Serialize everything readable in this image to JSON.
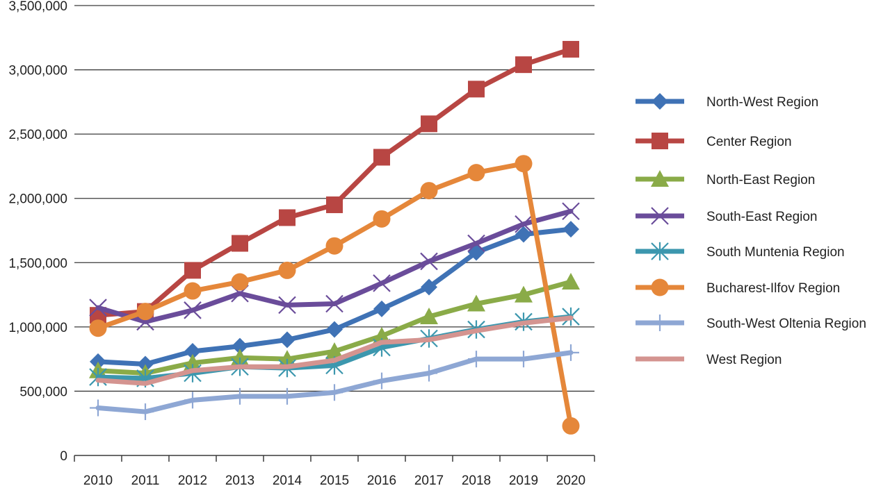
{
  "chart_data": {
    "type": "line",
    "title": "",
    "xlabel": "",
    "ylabel": "",
    "x": [
      "2010",
      "2011",
      "2012",
      "2013",
      "2014",
      "2015",
      "2016",
      "2017",
      "2018",
      "2019",
      "2020"
    ],
    "ylim": [
      0,
      3500000
    ],
    "yticks": [
      0,
      500000,
      1000000,
      1500000,
      2000000,
      2500000,
      3000000,
      3500000
    ],
    "ytick_labels": [
      "0",
      "500,000",
      "1,000,000",
      "1,500,000",
      "2,000,000",
      "2,500,000",
      "3,000,000",
      "3,500,000"
    ],
    "grid": "horizontal",
    "legend_position": "right",
    "series": [
      {
        "name": "North-West Region",
        "color": "#3f72b5",
        "marker": "diamond",
        "values": [
          730000,
          710000,
          810000,
          850000,
          900000,
          980000,
          1140000,
          1310000,
          1580000,
          1720000,
          1760000
        ]
      },
      {
        "name": "Center Region",
        "color": "#b84643",
        "marker": "square",
        "values": [
          1090000,
          1120000,
          1440000,
          1650000,
          1850000,
          1950000,
          2320000,
          2580000,
          2850000,
          3040000,
          3160000
        ]
      },
      {
        "name": "North-East Region",
        "color": "#8aab48",
        "marker": "triangle",
        "values": [
          660000,
          640000,
          720000,
          760000,
          750000,
          810000,
          930000,
          1080000,
          1180000,
          1250000,
          1350000
        ]
      },
      {
        "name": "South-East Region",
        "color": "#6a4c9a",
        "marker": "x",
        "values": [
          1150000,
          1040000,
          1130000,
          1260000,
          1170000,
          1180000,
          1340000,
          1510000,
          1650000,
          1800000,
          1900000
        ]
      },
      {
        "name": "South Muntenia Region",
        "color": "#3c97ae",
        "marker": "asterisk",
        "values": [
          610000,
          600000,
          640000,
          690000,
          680000,
          700000,
          840000,
          910000,
          980000,
          1040000,
          1080000
        ]
      },
      {
        "name": "Bucharest-Ilfov Region",
        "color": "#e5873a",
        "marker": "circle",
        "values": [
          990000,
          1120000,
          1280000,
          1350000,
          1440000,
          1630000,
          1840000,
          2060000,
          2200000,
          2270000,
          230000
        ]
      },
      {
        "name": "South-West Oltenia Region",
        "color": "#8ea7d4",
        "marker": "plus",
        "values": [
          370000,
          340000,
          430000,
          460000,
          460000,
          490000,
          580000,
          640000,
          750000,
          750000,
          800000
        ]
      },
      {
        "name": "West Region",
        "color": "#d49490",
        "marker": "none",
        "values": [
          585000,
          560000,
          660000,
          690000,
          690000,
          740000,
          880000,
          900000,
          970000,
          1030000,
          1070000
        ]
      }
    ]
  }
}
